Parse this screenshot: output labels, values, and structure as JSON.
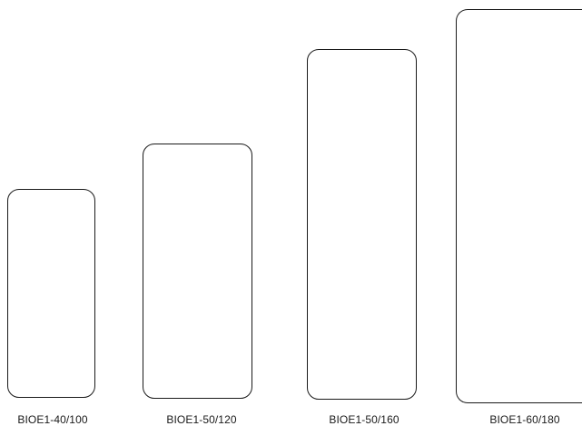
{
  "models": [
    {
      "label": "BIOE1-40/100"
    },
    {
      "label": "BIOE1-50/120"
    },
    {
      "label": "BIOE1-50/160"
    },
    {
      "label": "BIOE1-60/180"
    }
  ]
}
